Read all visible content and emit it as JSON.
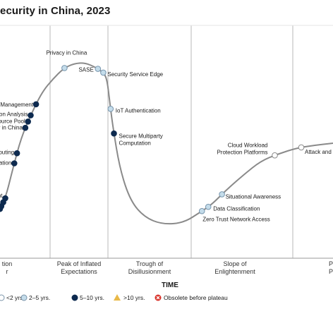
{
  "chart_data": {
    "type": "scatter",
    "title": "ecurity in China, 2023",
    "xlabel": "TIME",
    "ylabel": "",
    "phases": [
      "tion\nr",
      "Peak of Inflated\nExpectations",
      "Trough of\nDisillusionment",
      "Slope of\nEnlightenment",
      "P\nP"
    ],
    "legend": [
      {
        "label": "<2 yrs.",
        "color": "#ffffff"
      },
      {
        "label": "2–5 yrs.",
        "color": "#c4dcea"
      },
      {
        "label": "5–10 yrs.",
        "color": "#0d2a4f"
      },
      {
        "label": ">10 yrs.",
        "color": "#e9b949"
      },
      {
        "label": "Obsolete before plateau",
        "color": "#d9342b"
      }
    ],
    "technologies": [
      {
        "name": "Management",
        "progress": 0.112,
        "years": "5-10"
      },
      {
        "name": "on Analysis",
        "progress": 0.096,
        "years": "5-10"
      },
      {
        "name": "ource Pool",
        "progress": 0.088,
        "years": "5-10"
      },
      {
        "name": "y in China",
        "progress": 0.08,
        "years": "5-10"
      },
      {
        "name": "puting",
        "progress": 0.055,
        "years": "5-10"
      },
      {
        "name": "ation",
        "progress": 0.047,
        "years": "5-10"
      },
      {
        "name": "nt",
        "progress": 0.02,
        "years": "5-10"
      },
      {
        "name": "",
        "progress": 0.014,
        "years": "5-10"
      },
      {
        "name": "",
        "progress": 0.008,
        "years": "5-10"
      },
      {
        "name": "",
        "progress": 0.004,
        "years": "5-10"
      },
      {
        "name": "Privacy in China",
        "progress": 0.197,
        "years": "2-5"
      },
      {
        "name": "SASE",
        "progress": 0.297,
        "years": "2-5"
      },
      {
        "name": "Security Service Edge",
        "progress": 0.313,
        "years": "2-5"
      },
      {
        "name": "IoT Authentication",
        "progress": 0.335,
        "years": "2-5"
      },
      {
        "name": "Secure Multiparty\nComputation",
        "progress": 0.345,
        "years": "5-10"
      },
      {
        "name": "Zero Trust Network Access",
        "progress": 0.608,
        "years": "2-5"
      },
      {
        "name": "Data Classification",
        "progress": 0.627,
        "years": "2-5"
      },
      {
        "name": "Situational Awareness",
        "progress": 0.668,
        "years": "2-5"
      },
      {
        "name": "Cloud Workload\nProtection Platforms",
        "progress": 0.826,
        "years": "<2"
      },
      {
        "name": "Attack and",
        "progress": 0.905,
        "years": "<2"
      }
    ]
  }
}
